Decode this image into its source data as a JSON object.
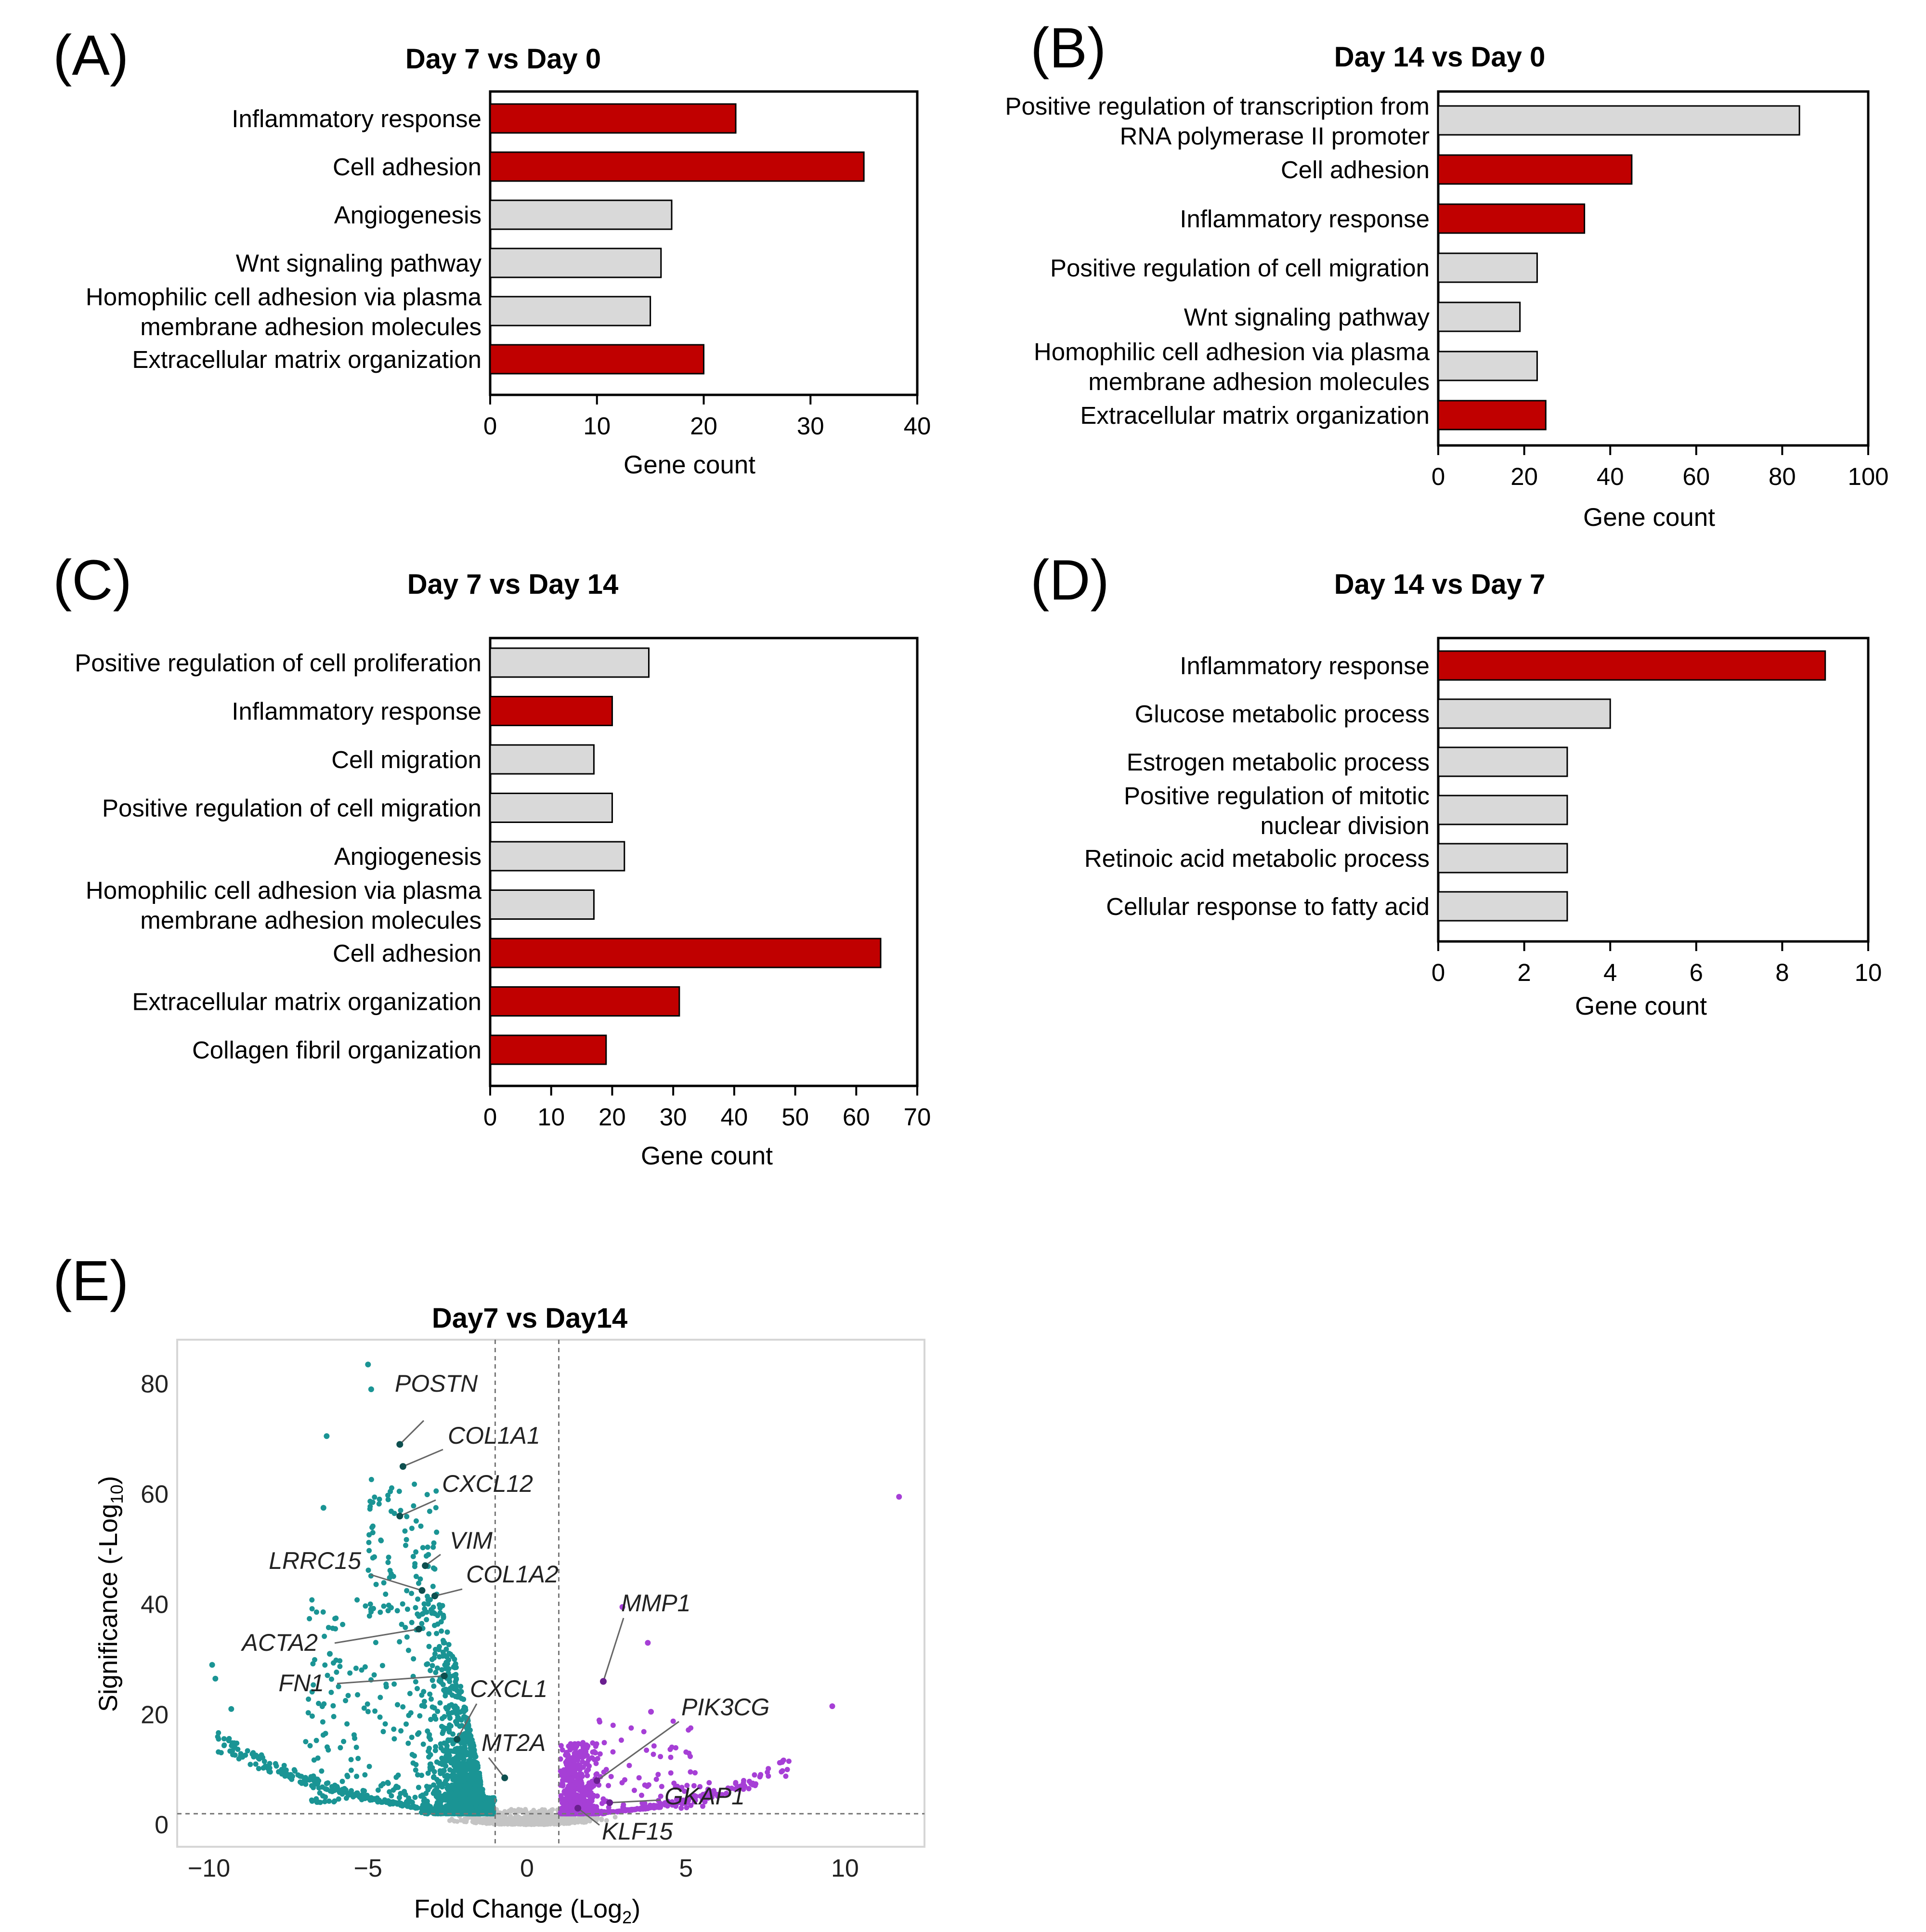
{
  "chart_data": [
    {
      "panel": "(A)",
      "type": "bar",
      "orientation": "horizontal",
      "title": "Day 7 vs Day 0",
      "xlabel": "Gene count",
      "xlim": [
        0,
        40
      ],
      "xticks": [
        0,
        10,
        20,
        30,
        40
      ],
      "categories": [
        "Inflammatory response",
        "Cell adhesion",
        "Angiogenesis",
        "Wnt signaling pathway",
        "Homophilic cell adhesion via plasma\nmembrane adhesion molecules",
        "Extracellular matrix organization"
      ],
      "values": [
        23,
        35,
        17,
        16,
        15,
        20
      ],
      "colors": [
        "#c00000",
        "#c00000",
        "#d9d9d9",
        "#d9d9d9",
        "#d9d9d9",
        "#c00000"
      ]
    },
    {
      "panel": "(B)",
      "type": "bar",
      "orientation": "horizontal",
      "title": "Day 14 vs Day 0",
      "xlabel": "Gene count",
      "xlim": [
        0,
        100
      ],
      "xticks": [
        0,
        20,
        40,
        60,
        80,
        100
      ],
      "categories": [
        "Positive regulation of transcription from\nRNA polymerase II promoter",
        "Cell adhesion",
        "Inflammatory response",
        "Positive regulation of cell migration",
        "Wnt signaling pathway",
        "Homophilic cell adhesion via plasma\nmembrane adhesion molecules",
        "Extracellular matrix organization"
      ],
      "values": [
        84,
        45,
        34,
        23,
        19,
        23,
        25
      ],
      "colors": [
        "#d9d9d9",
        "#c00000",
        "#c00000",
        "#d9d9d9",
        "#d9d9d9",
        "#d9d9d9",
        "#c00000"
      ]
    },
    {
      "panel": "(C)",
      "type": "bar",
      "orientation": "horizontal",
      "title": "Day 7 vs Day 14",
      "xlabel": "Gene count",
      "xlim": [
        0,
        70
      ],
      "xticks": [
        0,
        10,
        20,
        30,
        40,
        50,
        60,
        70
      ],
      "categories": [
        "Positive regulation of cell proliferation",
        "Inflammatory response",
        "Cell migration",
        "Positive regulation of cell migration",
        "Angiogenesis",
        "Homophilic cell adhesion via plasma\nmembrane adhesion molecules",
        "Cell adhesion",
        "Extracellular matrix organization",
        "Collagen fibril organization"
      ],
      "values": [
        26,
        20,
        17,
        20,
        22,
        17,
        64,
        31,
        19
      ],
      "colors": [
        "#d9d9d9",
        "#c00000",
        "#d9d9d9",
        "#d9d9d9",
        "#d9d9d9",
        "#d9d9d9",
        "#c00000",
        "#c00000",
        "#c00000"
      ]
    },
    {
      "panel": "(D)",
      "type": "bar",
      "orientation": "horizontal",
      "title": "Day 14 vs Day 7",
      "xlabel": "Gene count",
      "xlim": [
        0,
        10
      ],
      "xticks": [
        0,
        2,
        4,
        6,
        8,
        10
      ],
      "categories": [
        "Inflammatory response",
        "Glucose metabolic process",
        "Estrogen metabolic process",
        "Positive regulation of mitotic\nnuclear division",
        "Retinoic acid metabolic process",
        "Cellular response to fatty acid"
      ],
      "values": [
        9,
        4,
        3,
        3,
        3,
        3
      ],
      "colors": [
        "#c00000",
        "#d9d9d9",
        "#d9d9d9",
        "#d9d9d9",
        "#d9d9d9",
        "#d9d9d9"
      ]
    },
    {
      "panel": "(E)",
      "type": "scatter",
      "subtype": "volcano",
      "title": "Day7 vs Day14",
      "xlabel_main": "Fold Change (Log",
      "xlabel_sub": "2",
      "xlabel_end": ")",
      "ylabel_main": "Significance (-Log",
      "ylabel_sub": "10",
      "ylabel_end": ")",
      "xlim": [
        -11,
        12.5
      ],
      "ylim": [
        -4,
        88
      ],
      "xticks": [
        -10,
        -5,
        0,
        5,
        10
      ],
      "xtick_labels": [
        "−10",
        "−5",
        "0",
        "5",
        "10"
      ],
      "yticks": [
        0,
        20,
        40,
        60,
        80
      ],
      "fold_change_thresholds": [
        -1,
        1
      ],
      "significance_threshold": 2,
      "colors": {
        "down": "#1a9494",
        "up": "#a63fd6",
        "ns": "#c4c4c4",
        "highlight": "#0d4f4f"
      },
      "labeled_genes": [
        {
          "gene": "POSTN",
          "x": -4.0,
          "y": 69.0
        },
        {
          "gene": "COL1A1",
          "x": -3.9,
          "y": 65.0
        },
        {
          "gene": "CXCL12",
          "x": -4.0,
          "y": 56.0
        },
        {
          "gene": "VIM",
          "x": -3.2,
          "y": 47.0
        },
        {
          "gene": "LRRC15",
          "x": -3.3,
          "y": 42.5
        },
        {
          "gene": "COL1A2",
          "x": -2.9,
          "y": 41.5
        },
        {
          "gene": "ACTA2",
          "x": -3.4,
          "y": 35.5
        },
        {
          "gene": "FN1",
          "x": -2.6,
          "y": 27.0
        },
        {
          "gene": "CXCL1",
          "x": -2.2,
          "y": 15.5
        },
        {
          "gene": "MMP1",
          "x": 2.4,
          "y": 26.0
        },
        {
          "gene": "MT2A",
          "x": -0.7,
          "y": 8.5
        },
        {
          "gene": "PIK3CG",
          "x": 2.2,
          "y": 8.0
        },
        {
          "gene": "GKAP1",
          "x": 2.6,
          "y": 4.0
        },
        {
          "gene": "KLF15",
          "x": 1.6,
          "y": 3.0
        }
      ],
      "notable_points": [
        {
          "x": -5.0,
          "y": 83.5
        },
        {
          "x": -4.9,
          "y": 79.0
        },
        {
          "x": -6.3,
          "y": 70.5
        },
        {
          "x": -6.4,
          "y": 57.5
        },
        {
          "x": -9.9,
          "y": 29.0
        },
        {
          "x": -9.8,
          "y": 26.5
        },
        {
          "x": -9.3,
          "y": 21.0
        },
        {
          "x": -6.2,
          "y": 31.0
        },
        {
          "x": 11.7,
          "y": 59.5
        },
        {
          "x": 9.6,
          "y": 21.5
        },
        {
          "x": 3.0,
          "y": 39.5
        },
        {
          "x": 3.8,
          "y": 33.0
        },
        {
          "x": 3.9,
          "y": 20.5
        }
      ]
    }
  ]
}
